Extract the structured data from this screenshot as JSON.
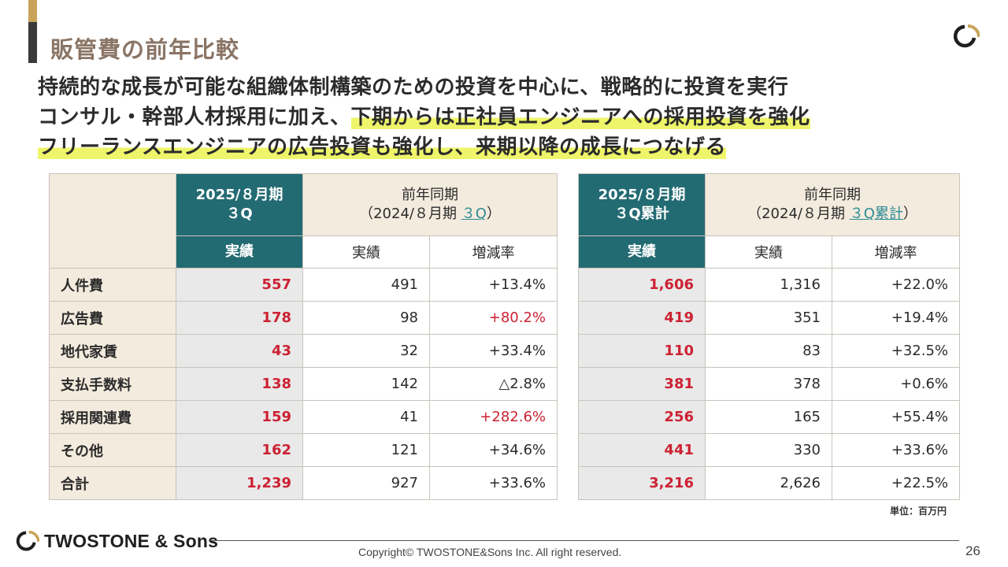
{
  "header": {
    "title": "販管費の前年比較"
  },
  "lead": {
    "line1": "持続的な成長が可能な組織体制構築のための投資を中心に、戦略的に投資を実行",
    "line2_plain": "コンサル・幹部人材採用に加え、",
    "line2_highlight": "下期からは正社員エンジニアへの採用投資を強化",
    "line3_highlight": "フリーランスエンジニアの広告投資も強化し、来期以降の成長につなげる"
  },
  "table_q": {
    "cur_period_line1": "2025/８月期",
    "cur_period_line2": "３Q",
    "prev_line1": "前年同期",
    "prev_line2_prefix": "（2024/８月期 ",
    "prev_line2_link": "３Q",
    "prev_line2_suffix": "）",
    "col_actual": "実績",
    "col_prev_actual": "実績",
    "col_rate": "増減率",
    "rows": [
      {
        "label": "人件費",
        "cur": "557",
        "prev": "491",
        "rate": "+13.4%"
      },
      {
        "label": "広告費",
        "cur": "178",
        "prev": "98",
        "rate": "+80.2%"
      },
      {
        "label": "地代家賃",
        "cur": "43",
        "prev": "32",
        "rate": "+33.4%"
      },
      {
        "label": "支払手数料",
        "cur": "138",
        "prev": "142",
        "rate": "△2.8%"
      },
      {
        "label": "採用関連費",
        "cur": "159",
        "prev": "41",
        "rate": "+282.6%"
      },
      {
        "label": "その他",
        "cur": "162",
        "prev": "121",
        "rate": "+34.6%"
      },
      {
        "label": "合計",
        "cur": "1,239",
        "prev": "927",
        "rate": "+33.6%"
      }
    ]
  },
  "table_cum": {
    "cur_period_line1": "2025/８月期",
    "cur_period_line2": "３Q累計",
    "prev_line1": "前年同期",
    "prev_line2_prefix": "（2024/８月期 ",
    "prev_line2_link": "３Q累計",
    "prev_line2_suffix": "）",
    "col_actual": "実績",
    "col_prev_actual": "実績",
    "col_rate": "増減率",
    "rows": [
      {
        "cur": "1,606",
        "prev": "1,316",
        "rate": "+22.0%"
      },
      {
        "cur": "419",
        "prev": "351",
        "rate": "+19.4%"
      },
      {
        "cur": "110",
        "prev": "83",
        "rate": "+32.5%"
      },
      {
        "cur": "381",
        "prev": "378",
        "rate": "+0.6%"
      },
      {
        "cur": "256",
        "prev": "165",
        "rate": "+55.4%"
      },
      {
        "cur": "441",
        "prev": "330",
        "rate": "+33.6%"
      },
      {
        "cur": "3,216",
        "prev": "2,626",
        "rate": "+22.5%"
      }
    ]
  },
  "unit_note": "単位：百万円",
  "footer": {
    "brand": "TWOSTONE & Sons",
    "copyright": "Copyright© TWOSTONE&Sons Inc. All right reserved.",
    "page_number": "26"
  },
  "colors": {
    "teal": "#236b73",
    "beige": "#f3ebdd",
    "red": "#cc2233",
    "highlight": "#eef56a",
    "gold": "#c9a35a"
  }
}
